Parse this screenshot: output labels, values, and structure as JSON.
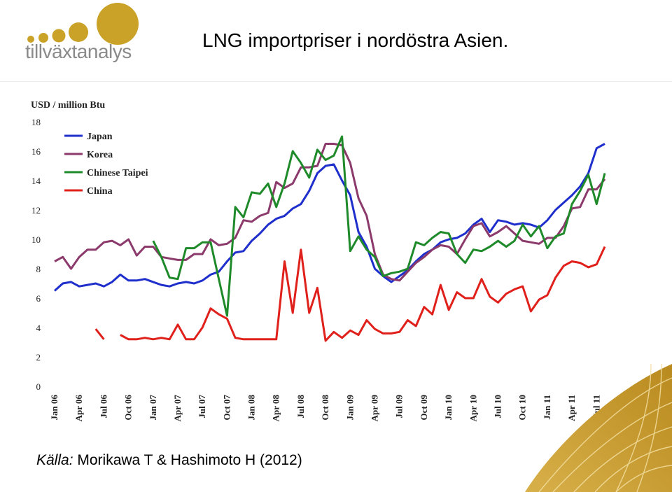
{
  "header": {
    "logo_text": "tillväxtanalys",
    "title": "LNG importpriser i nordöstra Asien."
  },
  "source": {
    "label": "Källa:",
    "text": "Morikawa T & Hashimoto H (2012)"
  },
  "colors": {
    "logo_gold": "#c9a227",
    "logo_text": "#8a8a8a",
    "japan": "#1f2fcc",
    "korea": "#8b3a6b",
    "taipei": "#1f8a2a",
    "china": "#e0201b"
  },
  "chart_data": {
    "type": "line",
    "ylabel": "USD / million Btu",
    "ylim": [
      0,
      18
    ],
    "yticks": [
      0,
      2,
      4,
      6,
      8,
      10,
      12,
      14,
      16,
      18
    ],
    "grid": false,
    "legend_position": "top-left",
    "x": [
      "Jan 06",
      "Feb 06",
      "Mar 06",
      "Apr 06",
      "May 06",
      "Jun 06",
      "Jul 06",
      "Aug 06",
      "Sep 06",
      "Oct 06",
      "Nov 06",
      "Dec 06",
      "Jan 07",
      "Feb 07",
      "Mar 07",
      "Apr 07",
      "May 07",
      "Jun 07",
      "Jul 07",
      "Aug 07",
      "Sep 07",
      "Oct 07",
      "Nov 07",
      "Dec 07",
      "Jan 08",
      "Feb 08",
      "Mar 08",
      "Apr 08",
      "May 08",
      "Jun 08",
      "Jul 08",
      "Aug 08",
      "Sep 08",
      "Oct 08",
      "Nov 08",
      "Dec 08",
      "Jan 09",
      "Feb 09",
      "Mar 09",
      "Apr 09",
      "May 09",
      "Jun 09",
      "Jul 09",
      "Aug 09",
      "Sep 09",
      "Oct 09",
      "Nov 09",
      "Dec 09",
      "Jan 10",
      "Feb 10",
      "Mar 10",
      "Apr 10",
      "May 10",
      "Jun 10",
      "Jul 10",
      "Aug 10",
      "Sep 10",
      "Oct 10",
      "Nov 10",
      "Dec 10",
      "Jan 11",
      "Feb 11",
      "Mar 11",
      "Apr 11",
      "May 11",
      "Jun 11",
      "Jul 11",
      "Aug 11"
    ],
    "xtick_labels": [
      "Jan 06",
      "Apr 06",
      "Jul 06",
      "Oct 06",
      "Jan 07",
      "Apr 07",
      "Jul 07",
      "Oct 07",
      "Jan 08",
      "Apr 08",
      "Jul 08",
      "Oct 08",
      "Jan 09",
      "Apr 09",
      "Jul 09",
      "Oct 09",
      "Jan 10",
      "Apr 10",
      "Jul 10",
      "Oct 10",
      "Jan 11",
      "Apr 11",
      "Jul 11"
    ],
    "series": [
      {
        "name": "Japan",
        "values": [
          6.5,
          7.0,
          7.1,
          6.8,
          6.9,
          7.0,
          6.8,
          7.1,
          7.6,
          7.2,
          7.2,
          7.3,
          7.1,
          6.9,
          6.8,
          7.0,
          7.1,
          7.0,
          7.2,
          7.6,
          7.8,
          8.5,
          9.1,
          9.2,
          9.9,
          10.4,
          11.0,
          11.4,
          11.6,
          12.1,
          12.4,
          13.3,
          14.5,
          15.0,
          15.1,
          14.0,
          13.0,
          10.5,
          9.5,
          8.0,
          7.5,
          7.1,
          7.5,
          7.9,
          8.5,
          9.0,
          9.3,
          9.8,
          10.0,
          10.1,
          10.4,
          11.0,
          11.4,
          10.5,
          11.3,
          11.2,
          11.0,
          11.1,
          11.0,
          10.8,
          11.3,
          12.0,
          12.5,
          13.0,
          13.6,
          14.5,
          16.2,
          16.5
        ]
      },
      {
        "name": "Korea",
        "values": [
          8.5,
          8.8,
          8.0,
          8.8,
          9.3,
          9.3,
          9.8,
          9.9,
          9.6,
          10.0,
          8.9,
          9.5,
          9.5,
          8.8,
          8.7,
          8.6,
          8.6,
          9.0,
          9.0,
          10.0,
          9.6,
          9.7,
          10.1,
          11.3,
          11.2,
          11.6,
          11.8,
          13.9,
          13.5,
          13.8,
          14.9,
          14.9,
          15.0,
          16.5,
          16.5,
          16.4,
          15.2,
          12.8,
          11.6,
          9.0,
          7.6,
          7.3,
          7.2,
          7.8,
          8.4,
          8.8,
          9.3,
          9.6,
          9.5,
          9.0,
          10.0,
          10.9,
          11.1,
          10.2,
          10.5,
          10.9,
          10.4,
          9.9,
          9.8,
          9.7,
          10.1,
          10.1,
          10.9,
          12.1,
          12.2,
          13.4,
          13.4,
          14.1
        ]
      },
      {
        "name": "Chinese Taipei",
        "values": [
          null,
          null,
          null,
          null,
          null,
          null,
          null,
          null,
          null,
          null,
          null,
          null,
          9.9,
          8.8,
          7.4,
          7.3,
          9.4,
          9.4,
          9.8,
          9.8,
          7.3,
          4.8,
          12.2,
          11.5,
          13.2,
          13.1,
          13.8,
          12.2,
          13.8,
          16.0,
          15.2,
          14.2,
          16.1,
          15.4,
          15.7,
          17.0,
          9.2,
          10.2,
          9.3,
          8.8,
          7.5,
          7.7,
          7.8,
          8.0,
          9.8,
          9.6,
          10.1,
          10.5,
          10.4,
          9.0,
          8.4,
          9.3,
          9.2,
          9.5,
          9.9,
          9.5,
          9.9,
          11.0,
          10.2,
          10.9,
          9.4,
          10.2,
          10.4,
          12.4,
          13.3,
          14.4,
          12.4,
          14.5
        ]
      },
      {
        "name": "China",
        "values": [
          null,
          null,
          null,
          null,
          null,
          3.9,
          3.2,
          null,
          3.5,
          3.2,
          3.2,
          3.3,
          3.2,
          3.3,
          3.2,
          4.2,
          3.2,
          3.2,
          4.0,
          5.3,
          4.9,
          4.6,
          3.3,
          3.2,
          3.2,
          3.2,
          3.2,
          3.2,
          8.5,
          5.0,
          9.3,
          5.0,
          6.7,
          3.1,
          3.7,
          3.3,
          3.8,
          3.5,
          4.5,
          3.9,
          3.6,
          3.6,
          3.7,
          4.5,
          4.1,
          5.4,
          4.9,
          6.9,
          5.2,
          6.4,
          6.0,
          6.0,
          7.3,
          6.1,
          5.7,
          6.3,
          6.6,
          6.8,
          5.1,
          5.9,
          6.2,
          7.4,
          8.2,
          8.5,
          8.4,
          8.1,
          8.3,
          9.5
        ]
      }
    ]
  }
}
